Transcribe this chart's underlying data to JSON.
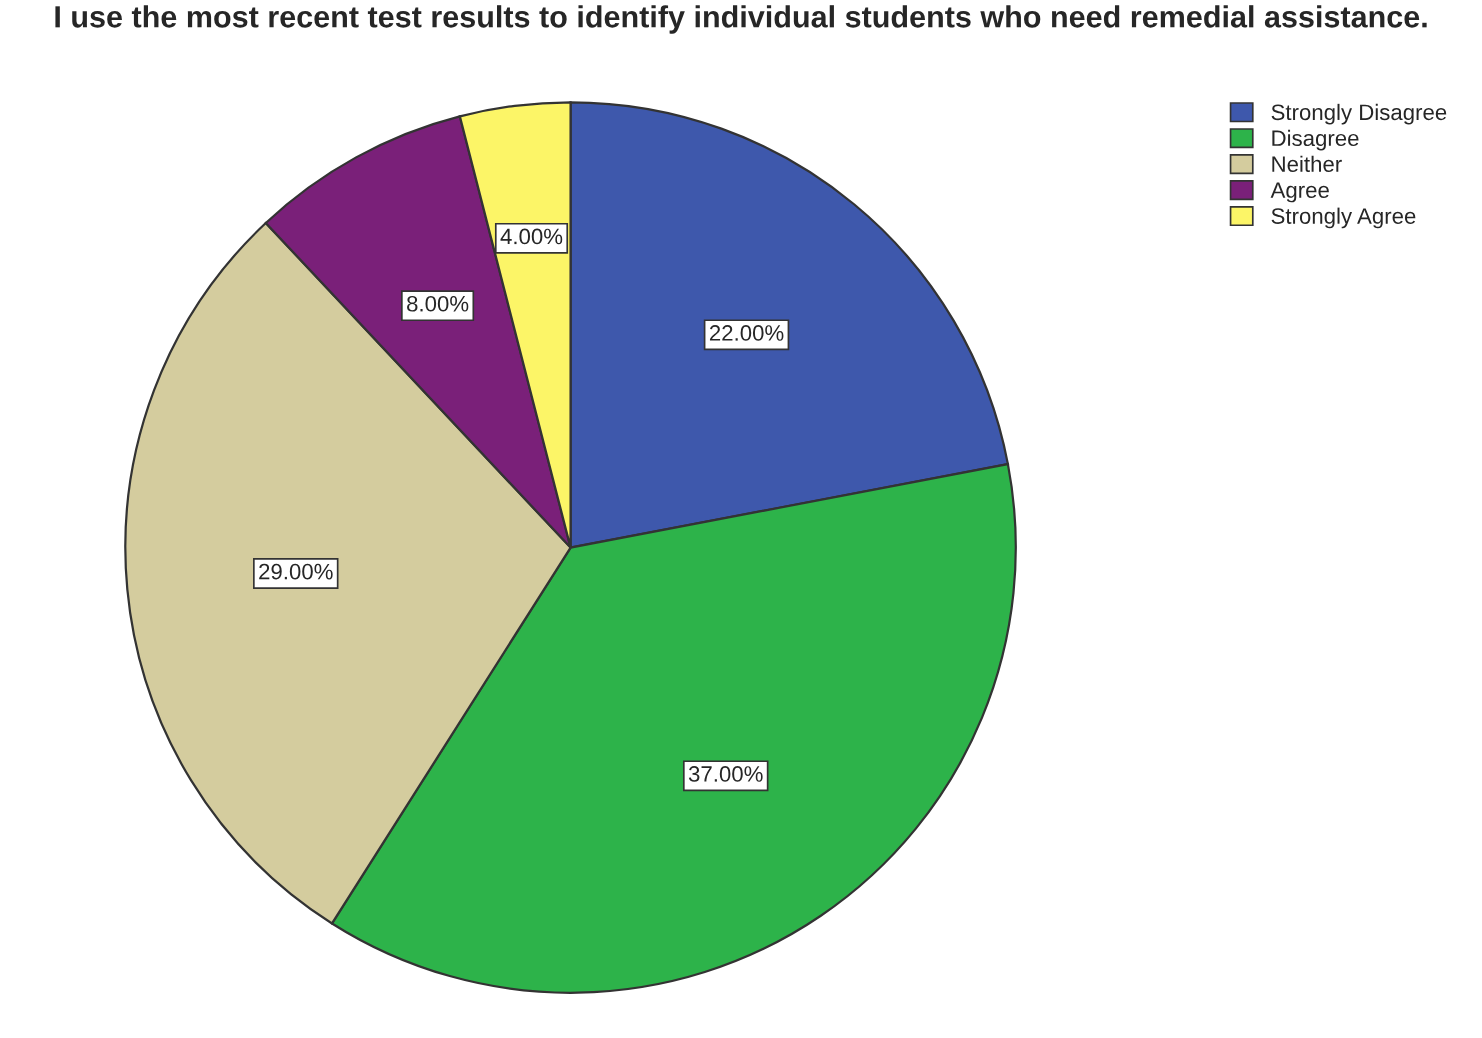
{
  "chart_data": {
    "type": "pie",
    "title": "I use the most recent test results to identify individual students who need remedial assistance.",
    "categories": [
      "Strongly Disagree",
      "Disagree",
      "Neither",
      "Agree",
      "Strongly Agree"
    ],
    "values": [
      22,
      37,
      29,
      8,
      4
    ],
    "colors": [
      "#3e58ac",
      "#2db34a",
      "#d4cc9e",
      "#7a2079",
      "#fcf567"
    ],
    "value_labels": [
      "22.00%",
      "37.00%",
      "29.00%",
      "8.00%",
      "4.00%"
    ],
    "legend": "top right"
  }
}
